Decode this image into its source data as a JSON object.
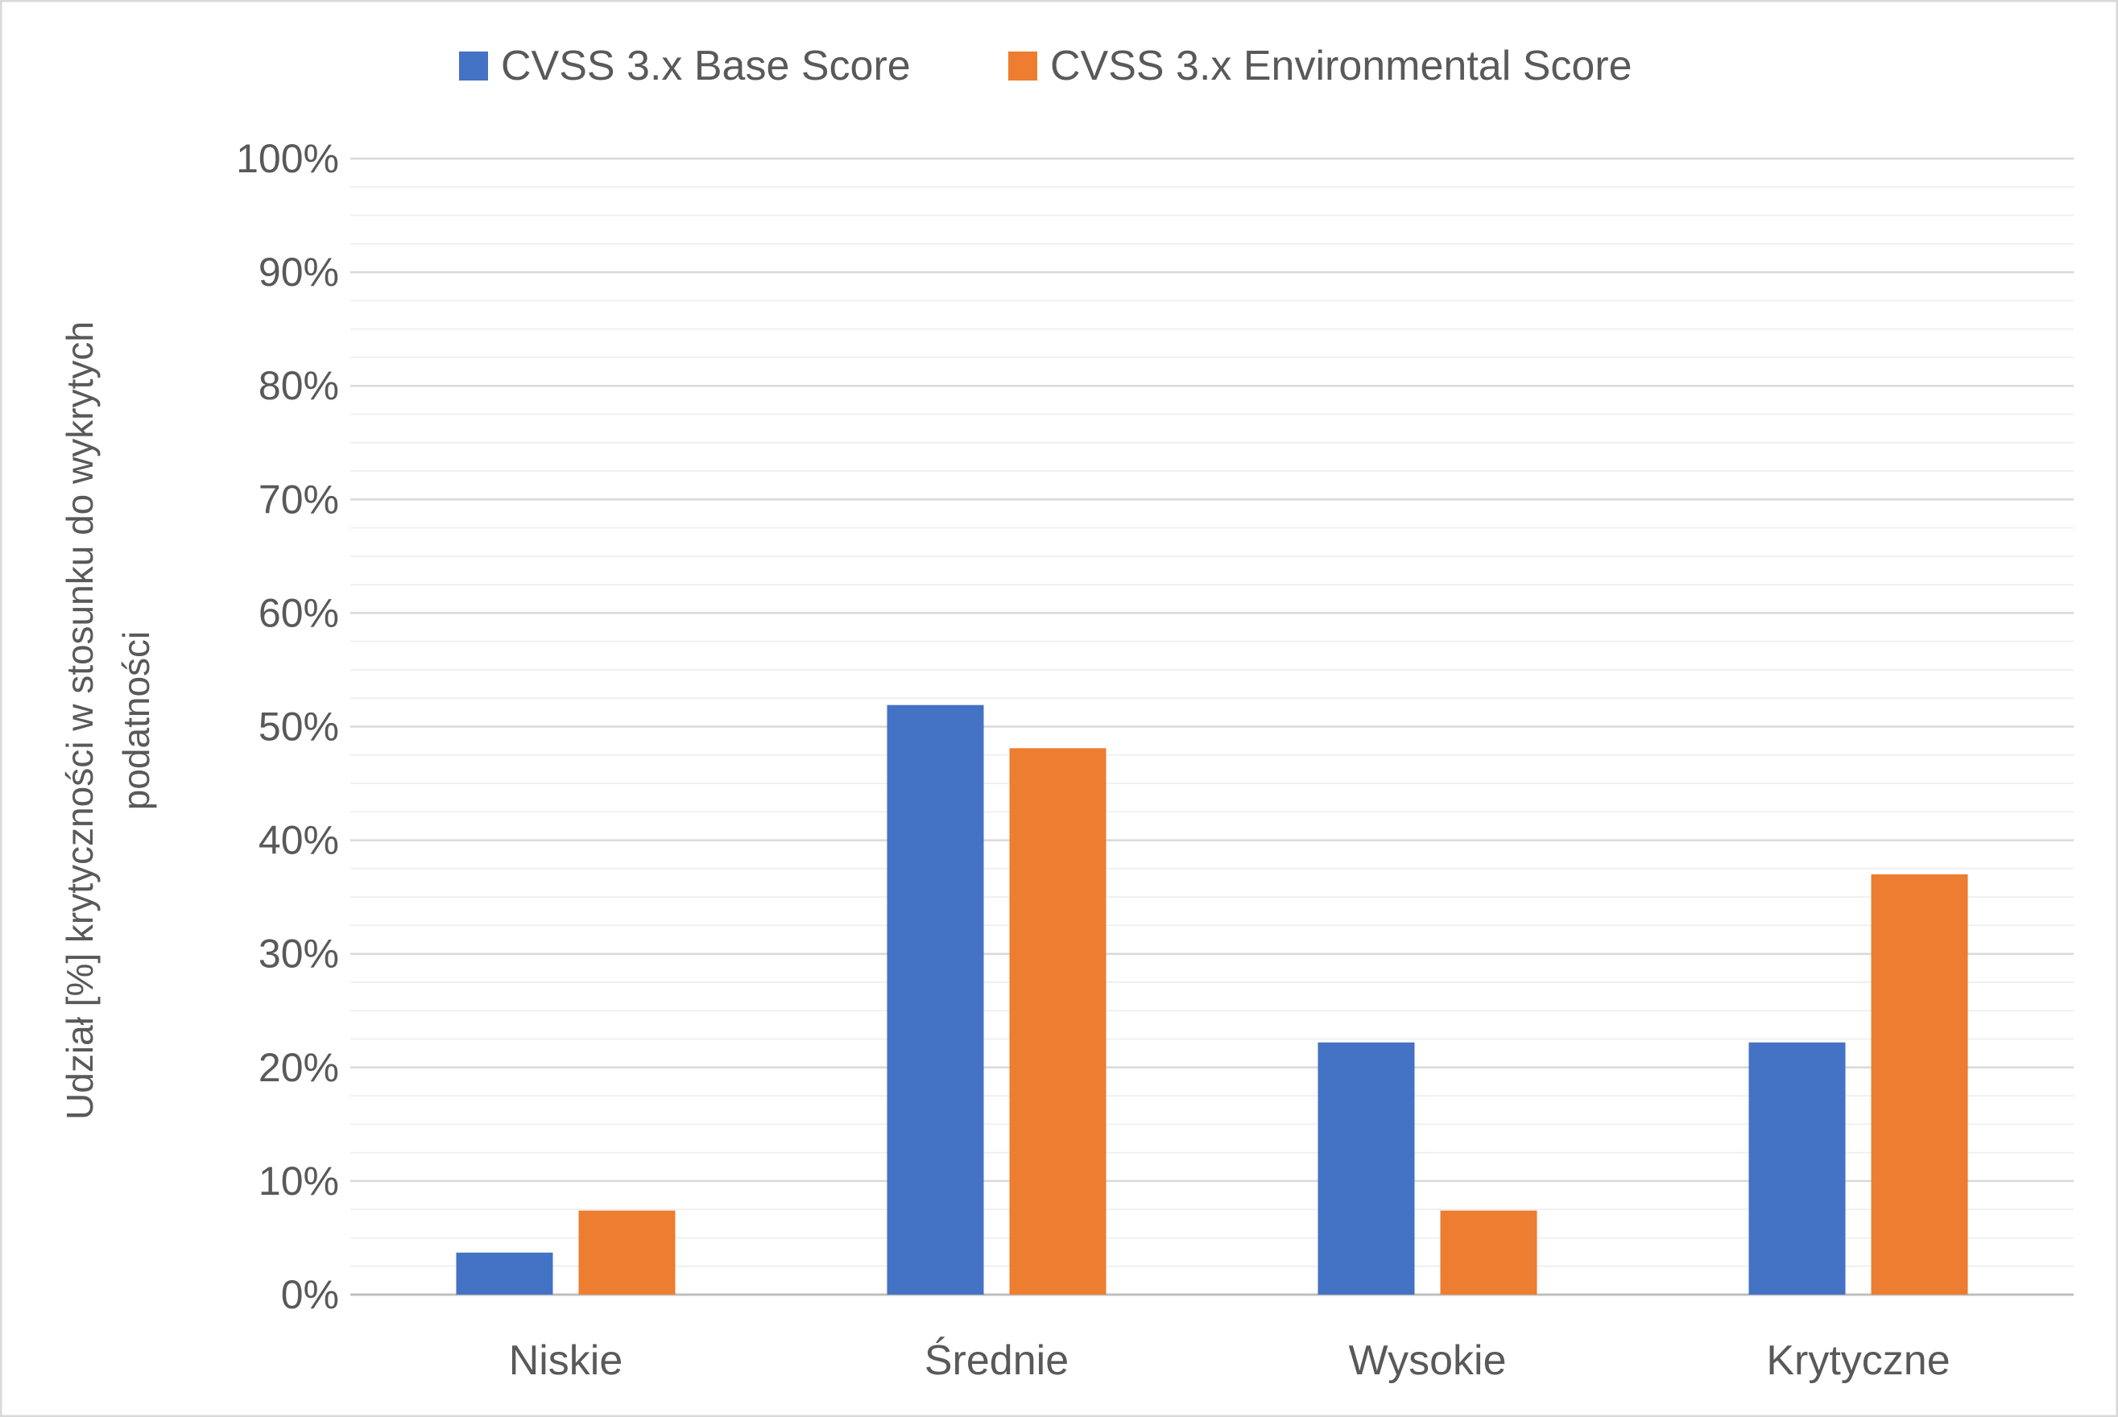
{
  "chart_data": {
    "type": "bar",
    "title": "",
    "xlabel": "",
    "ylabel": "Udział [%] krytyczności w stosunku do wykrytych podatności",
    "ylabel_lines": [
      "Udział [%] krytyczności w stosunku do wykrytych",
      "podatności"
    ],
    "categories": [
      "Niskie",
      "Średnie",
      "Wysokie",
      "Krytyczne"
    ],
    "series": [
      {
        "name": "CVSS 3.x Base Score",
        "color": "#4472C4",
        "values": [
          3.7,
          51.9,
          22.2,
          22.2
        ]
      },
      {
        "name": "CVSS 3.x Environmental Score",
        "color": "#ED7D31",
        "values": [
          7.4,
          48.1,
          7.4,
          37.0
        ]
      }
    ],
    "ylim": [
      0,
      100
    ],
    "yticks": [
      0,
      10,
      20,
      30,
      40,
      50,
      60,
      70,
      80,
      90,
      100
    ],
    "ytick_labels": [
      "0%",
      "10%",
      "20%",
      "30%",
      "40%",
      "50%",
      "60%",
      "70%",
      "80%",
      "90%",
      "100%"
    ],
    "grid": true,
    "minor_grid": true,
    "legend_position": "top-center"
  }
}
